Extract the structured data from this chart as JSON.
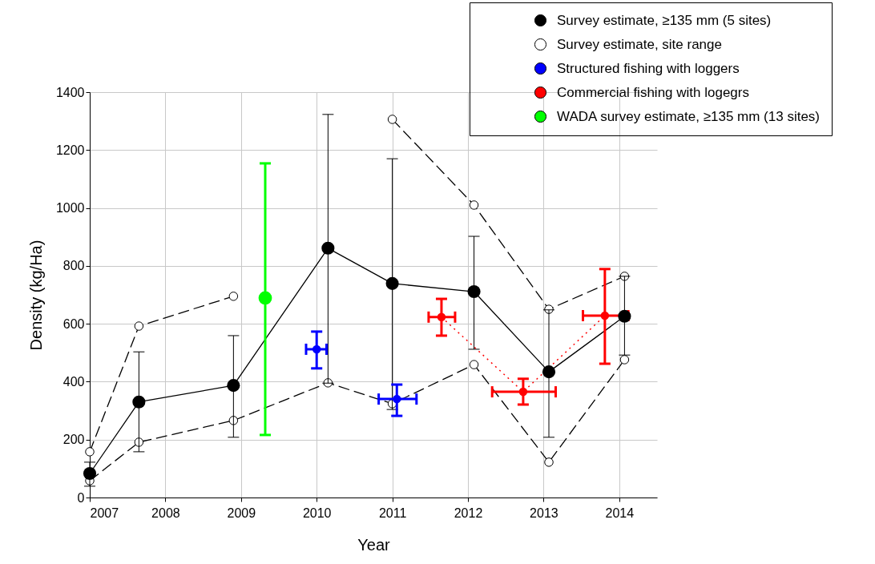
{
  "chart_data": {
    "type": "line",
    "xlabel": "Year",
    "ylabel": "Density (kg/Ha)",
    "xlim": [
      2007,
      2014.5
    ],
    "xticks": [
      2007,
      2008,
      2009,
      2010,
      2011,
      2012,
      2013,
      2014
    ],
    "ylim": [
      0,
      1400
    ],
    "yticks": [
      0,
      200,
      400,
      600,
      800,
      1000,
      1200,
      1400
    ],
    "grid": true,
    "legend": "top right",
    "marker": "circle",
    "series": [
      {
        "name": "Survey estimate, ≥135 mm (5 sites)",
        "type": "line",
        "line_style": "solid",
        "color": "#000000",
        "x": [
          2007.0,
          2007.65,
          2008.9,
          2010.15,
          2011.0,
          2012.08,
          2013.07,
          2014.07
        ],
        "values": [
          83,
          330,
          387,
          861,
          739,
          711,
          434,
          626
        ],
        "errors": [
          [
            39,
            122
          ],
          [
            158,
            503
          ],
          [
            208,
            559
          ],
          [
            395,
            1323
          ],
          [
            304,
            1170
          ],
          [
            512,
            902
          ],
          [
            208,
            648
          ],
          [
            492,
            764
          ]
        ]
      },
      {
        "name": "Survey estimate, site range",
        "type": "line",
        "line_style": "dashed",
        "color": "#000000",
        "x": [
          2007.0,
          2007.65,
          2008.9,
          2010.15,
          2011.0,
          2012.08,
          2013.07,
          2014.07
        ],
        "values": [
          158,
          592,
          695,
          null,
          1306,
          1010,
          650,
          764
        ]
      },
      {
        "name": null,
        "type": "line",
        "line_style": "dashed",
        "color": "#000000",
        "x": [
          2007.0,
          2007.65,
          2008.9,
          2010.15,
          2011.0,
          2012.08,
          2013.07,
          2014.07
        ],
        "values": [
          58,
          191,
          266,
          396,
          324,
          459,
          122,
          476
        ]
      },
      {
        "name": "Structured fishing with loggers",
        "type": "scatter",
        "color": "#0000ff",
        "x": [
          2010.0,
          2011.06
        ],
        "values": [
          512,
          340
        ],
        "errors": [
          [
            446,
            573
          ],
          [
            282,
            390
          ]
        ],
        "xerrors": [
          [
            2009.86,
            2010.13
          ],
          [
            2010.82,
            2011.32
          ]
        ]
      },
      {
        "name": "Commercial fishing with logegrs",
        "type": "line",
        "line_style": "dotted",
        "color": "#ff0000",
        "x": [
          2011.65,
          2012.73,
          2013.81
        ],
        "values": [
          623,
          365,
          628
        ],
        "errors": [
          [
            559,
            686
          ],
          [
            321,
            410
          ],
          [
            462,
            789
          ]
        ],
        "xerrors": [
          [
            2011.48,
            2011.83
          ],
          [
            2012.32,
            2013.16
          ],
          [
            2013.52,
            2014.12
          ]
        ]
      },
      {
        "name": "WADA survey estimate, ≥135 mm (13 sites)",
        "type": "scatter",
        "color": "#00ff00",
        "x": [
          2009.32
        ],
        "values": [
          689
        ],
        "errors": [
          [
            216,
            1154
          ]
        ]
      }
    ]
  }
}
